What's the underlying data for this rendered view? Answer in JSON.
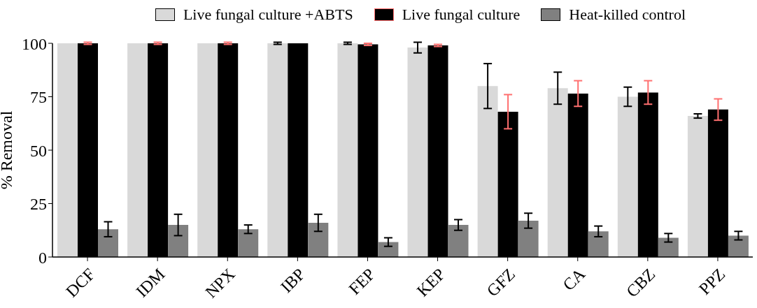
{
  "chart_data": {
    "type": "bar",
    "ylabel": "% Removal",
    "categories": [
      "DCF",
      "IDM",
      "NPX",
      "IBP",
      "FEP",
      "KEP",
      "GFZ",
      "CA",
      "CBZ",
      "PPZ"
    ],
    "series": [
      {
        "name": "Live fungal culture +ABTS",
        "color": "#d9d9d9",
        "values": [
          100,
          100,
          100,
          100,
          100,
          98,
          80,
          79,
          75,
          66
        ],
        "errors": [
          null,
          null,
          null,
          0.5,
          0.5,
          2.5,
          10.5,
          7.5,
          4.5,
          1
        ]
      },
      {
        "name": "Live fungal culture",
        "color": "#000000",
        "values": [
          100,
          100,
          100,
          100,
          99.5,
          99,
          68,
          76.5,
          77,
          69
        ],
        "errors": [
          0.5,
          0.5,
          0.5,
          null,
          0.5,
          0.5,
          8,
          6,
          5.5,
          5
        ]
      },
      {
        "name": "Heat-killed control",
        "color": "#808080",
        "values": [
          13,
          15,
          13,
          16,
          7,
          15,
          17,
          12,
          9,
          10
        ],
        "errors": [
          3.5,
          5,
          2,
          4,
          2,
          2.5,
          3.5,
          2.5,
          2,
          2
        ]
      }
    ],
    "ylim": [
      0,
      100
    ],
    "yticks": [
      0,
      25,
      50,
      75,
      100
    ],
    "legend": "top"
  }
}
